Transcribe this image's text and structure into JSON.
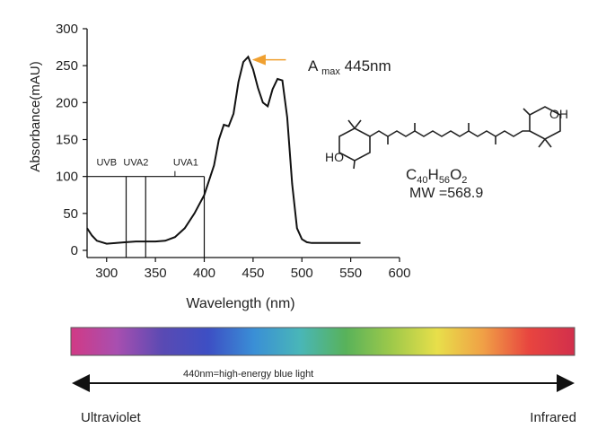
{
  "chart_data": {
    "type": "line",
    "xlabel": "Wavelength (nm)",
    "ylabel": "Absorbance(mAU)",
    "xlim": [
      280,
      600
    ],
    "ylim": [
      0,
      300
    ],
    "xticks": [
      "300",
      "350",
      "400",
      "450",
      "500",
      "550",
      "600"
    ],
    "yticks": [
      "0",
      "50",
      "100",
      "150",
      "200",
      "250",
      "300"
    ],
    "grid": false,
    "series": [
      {
        "x": [
          280,
          285,
          290,
          300,
          310,
          320,
          330,
          340,
          350,
          360,
          370,
          380,
          390,
          400,
          410,
          415,
          420,
          425,
          430,
          435,
          440,
          445,
          450,
          455,
          460,
          465,
          470,
          475,
          480,
          485,
          490,
          495,
          500,
          505,
          510,
          520,
          540,
          560
        ],
        "y": [
          30,
          20,
          13,
          9,
          10,
          11,
          12,
          12,
          12,
          13,
          18,
          30,
          50,
          75,
          115,
          150,
          170,
          168,
          185,
          228,
          255,
          262,
          245,
          220,
          200,
          195,
          218,
          232,
          230,
          180,
          90,
          30,
          15,
          11,
          10,
          10,
          10,
          10
        ]
      }
    ],
    "uv_bands": [
      {
        "label": "UVB",
        "x": 320
      },
      {
        "label": "UVA2",
        "x": 340
      },
      {
        "label": "UVA1",
        "x": 400
      }
    ],
    "band_line_y": 100,
    "uva1_tick_x": 370,
    "annotation": {
      "label_prefix": "A",
      "label_sub": "max",
      "label_value": "445nm",
      "x": 445,
      "y": 258,
      "arrow_color": "#f0a030"
    },
    "formula": {
      "c": "C",
      "c_n": "40",
      "h": "H",
      "h_n": "56",
      "o": "O",
      "o_n": "2"
    },
    "molecular_weight": "MW =568.9",
    "molecule_labels": {
      "oh_right": "OH",
      "ho_left": "HO"
    }
  },
  "spectrum": {
    "caption": "440nm=high-energy blue light",
    "left_label": "Ultraviolet",
    "right_label": "Infrared",
    "colors": [
      "#d13a85",
      "#a84fb0",
      "#5a4ab3",
      "#3d4fc4",
      "#3a8fd6",
      "#49b6b8",
      "#58b25a",
      "#9ec94a",
      "#e8df4a",
      "#f0a046",
      "#e8453f",
      "#d22f4c"
    ]
  }
}
